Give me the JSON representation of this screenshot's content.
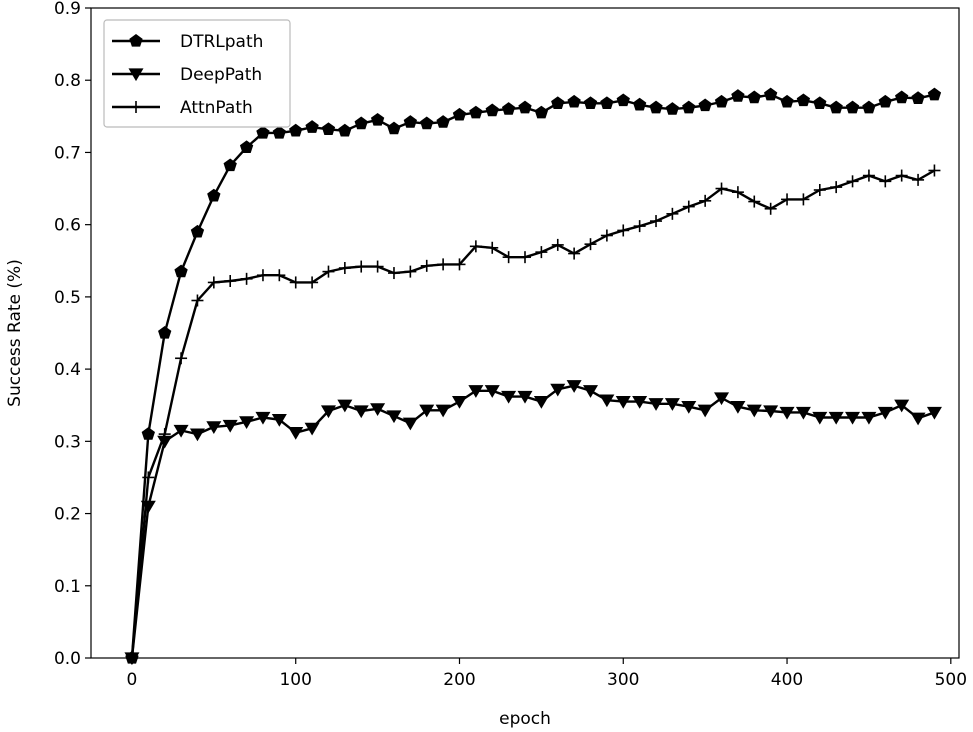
{
  "chart_data": {
    "type": "line",
    "title": "",
    "xlabel": "epoch",
    "ylabel": "Success Rate (%)",
    "xlim": [
      -25,
      505
    ],
    "ylim": [
      0,
      0.9
    ],
    "xticks": [
      "0",
      "100",
      "200",
      "300",
      "400",
      "500"
    ],
    "xtick_values": [
      0,
      100,
      200,
      300,
      400,
      500
    ],
    "yticks": [
      "0.0",
      "0.1",
      "0.2",
      "0.3",
      "0.4",
      "0.5",
      "0.6",
      "0.7",
      "0.8",
      "0.9"
    ],
    "ytick_values": [
      0,
      0.1,
      0.2,
      0.3,
      0.4,
      0.5,
      0.6,
      0.7,
      0.8,
      0.9
    ],
    "grid": false,
    "legend_position": "top-left",
    "x": [
      0,
      10,
      20,
      30,
      40,
      50,
      60,
      70,
      80,
      90,
      100,
      110,
      120,
      130,
      140,
      150,
      160,
      170,
      180,
      190,
      200,
      210,
      220,
      230,
      240,
      250,
      260,
      270,
      280,
      290,
      300,
      310,
      320,
      330,
      340,
      350,
      360,
      370,
      380,
      390,
      400,
      410,
      420,
      430,
      440,
      450,
      460,
      470,
      480,
      490
    ],
    "series": [
      {
        "name": "DTRLpath",
        "marker": "pentagon",
        "color": "#000000",
        "values": [
          0.0,
          0.31,
          0.45,
          0.535,
          0.59,
          0.64,
          0.682,
          0.707,
          0.727,
          0.727,
          0.73,
          0.735,
          0.732,
          0.73,
          0.74,
          0.745,
          0.733,
          0.742,
          0.74,
          0.742,
          0.752,
          0.755,
          0.758,
          0.76,
          0.762,
          0.755,
          0.768,
          0.77,
          0.768,
          0.768,
          0.772,
          0.766,
          0.762,
          0.76,
          0.762,
          0.765,
          0.77,
          0.778,
          0.776,
          0.78,
          0.77,
          0.772,
          0.768,
          0.762,
          0.762,
          0.762,
          0.77,
          0.776,
          0.775,
          0.78
        ]
      },
      {
        "name": "DeepPath",
        "marker": "triangle-down",
        "color": "#000000",
        "values": [
          0.0,
          0.21,
          0.3,
          0.315,
          0.31,
          0.32,
          0.322,
          0.327,
          0.333,
          0.33,
          0.312,
          0.318,
          0.342,
          0.35,
          0.342,
          0.345,
          0.335,
          0.325,
          0.343,
          0.343,
          0.355,
          0.37,
          0.37,
          0.362,
          0.362,
          0.355,
          0.372,
          0.377,
          0.37,
          0.357,
          0.355,
          0.355,
          0.352,
          0.352,
          0.348,
          0.343,
          0.36,
          0.348,
          0.343,
          0.342,
          0.34,
          0.34,
          0.333,
          0.333,
          0.333,
          0.333,
          0.34,
          0.35,
          0.332,
          0.34
        ]
      },
      {
        "name": "AttnPath",
        "marker": "plus",
        "color": "#000000",
        "values": [
          0.0,
          0.25,
          0.31,
          0.415,
          0.495,
          0.52,
          0.522,
          0.525,
          0.53,
          0.53,
          0.52,
          0.52,
          0.535,
          0.54,
          0.542,
          0.542,
          0.533,
          0.535,
          0.543,
          0.545,
          0.545,
          0.57,
          0.568,
          0.555,
          0.555,
          0.562,
          0.572,
          0.56,
          0.573,
          0.585,
          0.592,
          0.598,
          0.605,
          0.615,
          0.625,
          0.633,
          0.65,
          0.645,
          0.632,
          0.622,
          0.635,
          0.635,
          0.648,
          0.652,
          0.66,
          0.668,
          0.66,
          0.668,
          0.662,
          0.675
        ]
      }
    ]
  }
}
